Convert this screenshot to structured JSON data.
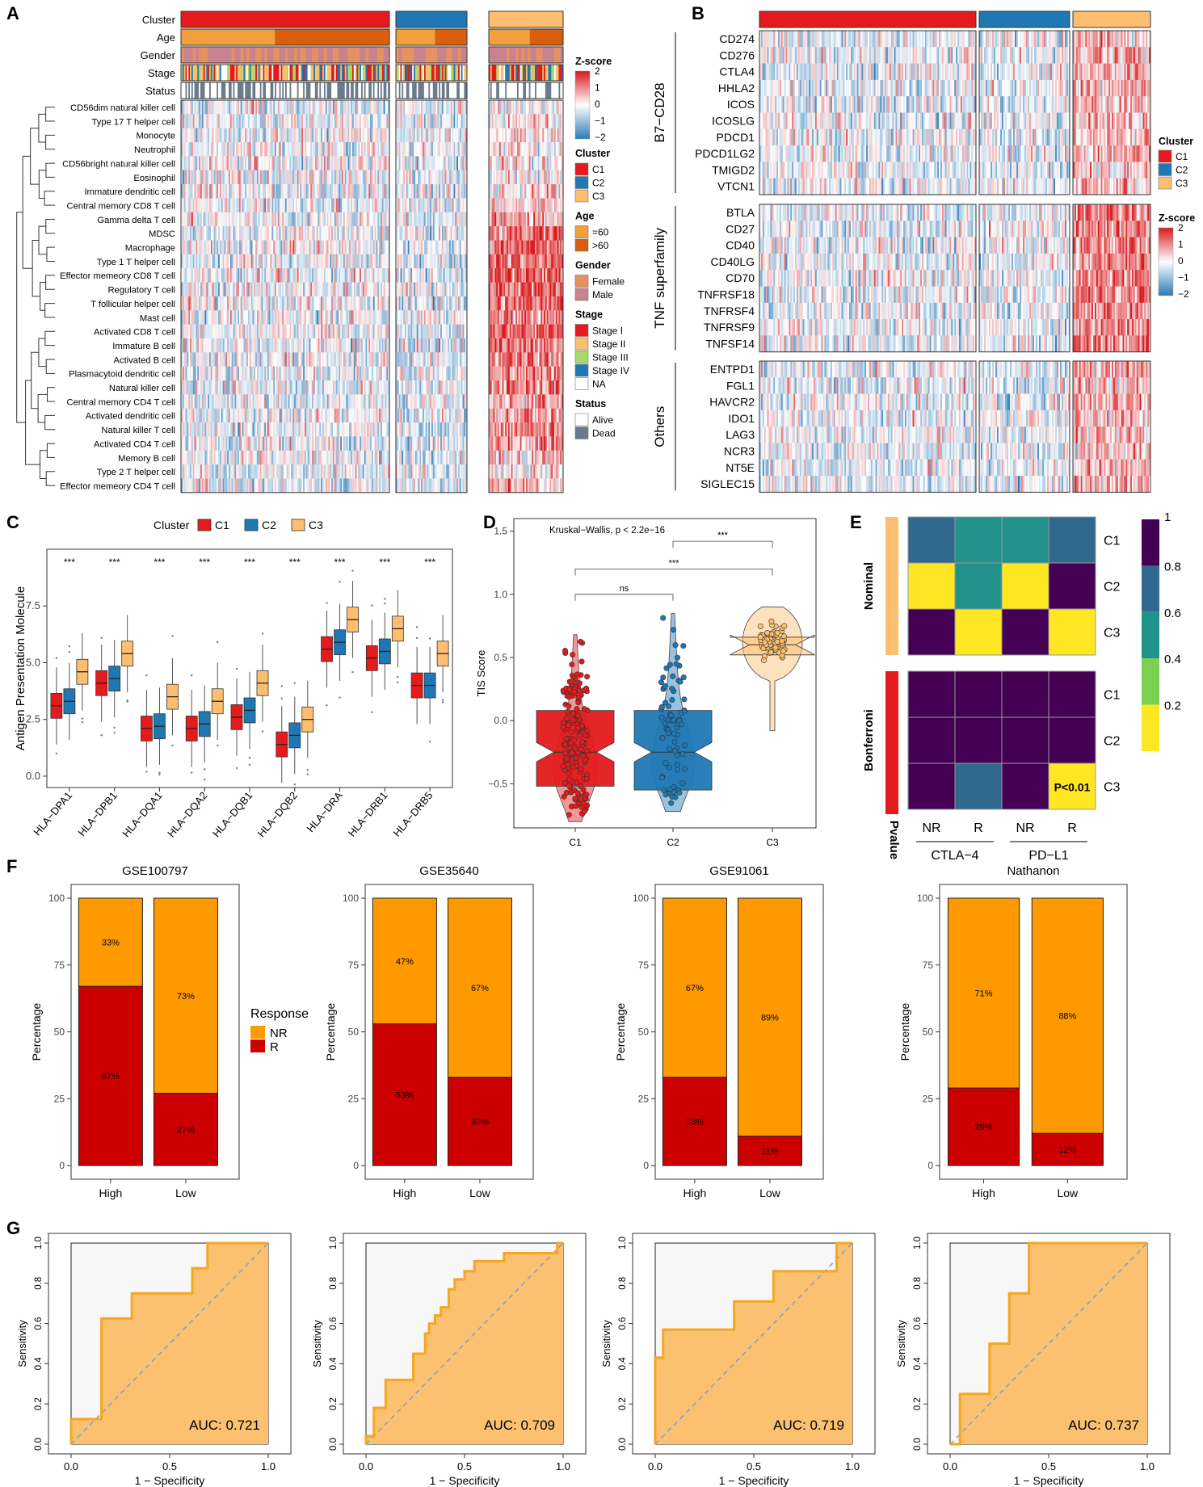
{
  "panel_labels": [
    "A",
    "B",
    "C",
    "D",
    "E",
    "F",
    "G"
  ],
  "colors": {
    "C1": "#e41a1c",
    "C2": "#1f78b4",
    "C3": "#fdbf6f",
    "red": "#d7191c",
    "blue": "#2c7bb6",
    "nr": "#ff9900",
    "r": "#cc0000",
    "roc": "#f5a623"
  },
  "chart_data": [
    {
      "id": "A",
      "type": "heatmap",
      "annotation_tracks": [
        "Cluster",
        "Age",
        "Gender",
        "Stage",
        "Status"
      ],
      "rows": [
        "CD56dim natural killer cell",
        "Type 17 T helper cell",
        "Monocyte",
        "Neutrophil",
        "CD56bright natural killer cell",
        "Eosinophil",
        "Immature dendritic cell",
        "Central memory CD8 T cell",
        "Gamma delta T cell",
        "MDSC",
        "Macrophage",
        "Type 1 T helper cell",
        "Effector memeory CD8 T cell",
        "Regulatory T cell",
        "T follicular helper cell",
        "Mast cell",
        "Activated CD8 T cell",
        "Immature  B cell",
        "Activated B cell",
        "Plasmacytoid dendritic cell",
        "Natural killer cell",
        "Central memory CD4 T cell",
        "Activated dendritic cell",
        "Natural killer T cell",
        "Activated CD4 T cell",
        "Memory B cell",
        "Type 2 T helper cell",
        "Effector memeory CD4 T cell"
      ],
      "row_mean_C3": [
        0.1,
        0.2,
        0.3,
        0.1,
        0.2,
        0.1,
        0.3,
        0.4,
        0.6,
        1.2,
        1.2,
        1.3,
        1.4,
        1.3,
        1.3,
        0.9,
        1.4,
        1.2,
        1.1,
        1.0,
        1.0,
        0.7,
        0.9,
        0.9,
        0.9,
        0.6,
        0.3,
        0.5
      ],
      "legend": {
        "zscore_title": "Z-score",
        "zscore_ticks": [
          "2",
          "1",
          "0",
          "−1",
          "−2"
        ],
        "groups": [
          {
            "title": "Cluster",
            "items": [
              "C1",
              "C2",
              "C3"
            ],
            "colors": [
              "#e41a1c",
              "#1f78b4",
              "#fdbf6f"
            ]
          },
          {
            "title": "Age",
            "items": [
              "=60",
              ">60"
            ],
            "colors": [
              "#f0a03c",
              "#d95f0e"
            ]
          },
          {
            "title": "Gender",
            "items": [
              "Female",
              "Male"
            ],
            "colors": [
              "#e6915f",
              "#c9838f"
            ]
          },
          {
            "title": "Stage",
            "items": [
              "Stage I",
              "Stage II",
              "Stage III",
              "Stage IV",
              "NA"
            ],
            "colors": [
              "#e41a1c",
              "#f5c26b",
              "#a6d96a",
              "#1f78b4",
              "#ffffff"
            ]
          },
          {
            "title": "Status",
            "items": [
              "Alive",
              "Dead"
            ],
            "colors": [
              "#ffffff",
              "#6b7b8c"
            ]
          }
        ]
      }
    },
    {
      "id": "B",
      "type": "heatmap",
      "groups": [
        {
          "name": "B7−CD28",
          "rows": [
            "CD274",
            "CD276",
            "CTLA4",
            "HHLA2",
            "ICOS",
            "ICOSLG",
            "PDCD1",
            "PDCD1LG2",
            "TMIGD2",
            "VTCN1"
          ]
        },
        {
          "name": "TNF superfamily",
          "rows": [
            "BTLA",
            "CD27",
            "CD40",
            "CD40LG",
            "CD70",
            "TNFRSF18",
            "TNFRSF4",
            "TNFRSF9",
            "TNFSF14"
          ]
        },
        {
          "name": "Others",
          "rows": [
            "ENTPD1",
            "FGL1",
            "HAVCR2",
            "IDO1",
            "LAG3",
            "NCR3",
            "NT5E",
            "SIGLEC15"
          ]
        }
      ],
      "legend": {
        "cluster_title": "Cluster",
        "items": [
          "C1",
          "C2",
          "C3"
        ],
        "zscore_title": "Z-score",
        "zscore_ticks": [
          "2",
          "1",
          "0",
          "−1",
          "−2"
        ]
      }
    },
    {
      "id": "C",
      "type": "box",
      "ylabel": "Antigen Presentation Molecule",
      "legend_title": "Cluster",
      "series_names": [
        "C1",
        "C2",
        "C3"
      ],
      "categories": [
        "HLA−DPA1",
        "HLA−DPB1",
        "HLA−DQA1",
        "HLA−DQA2",
        "HLA−DQB1",
        "HLA−DQB2",
        "HLA−DRA",
        "HLA−DRB1",
        "HLA−DRB5"
      ],
      "significance": "***",
      "yticks": [
        "0.0",
        "2.5",
        "5.0",
        "7.5"
      ],
      "ylim": [
        -0.5,
        10
      ],
      "medians": [
        [
          3.1,
          3.3,
          4.6
        ],
        [
          4.1,
          4.3,
          5.4
        ],
        [
          2.1,
          2.2,
          3.5
        ],
        [
          2.1,
          2.3,
          3.3
        ],
        [
          2.6,
          2.9,
          4.1
        ],
        [
          1.4,
          1.8,
          2.5
        ],
        [
          5.6,
          5.9,
          6.9
        ],
        [
          5.2,
          5.5,
          6.5
        ],
        [
          4.0,
          4.0,
          5.4
        ]
      ]
    },
    {
      "id": "D",
      "type": "violin",
      "ylabel": "TIS Score",
      "categories": [
        "C1",
        "C2",
        "C3"
      ],
      "annotation": "Kruskal−Wallis, p < 2.2e−16",
      "comparisons": [
        {
          "pair": [
            "C1",
            "C2"
          ],
          "label": "ns"
        },
        {
          "pair": [
            "C1",
            "C3"
          ],
          "label": "***"
        },
        {
          "pair": [
            "C2",
            "C3"
          ],
          "label": "***"
        }
      ],
      "yticks": [
        "−0.5",
        "0.0",
        "0.5",
        "1.0",
        "1.5"
      ],
      "ylim": [
        -0.85,
        1.6
      ],
      "medians": [
        -0.25,
        -0.25,
        0.6
      ],
      "q1": [
        -0.52,
        -0.55,
        0.52
      ],
      "q3": [
        0.08,
        0.08,
        0.66
      ]
    },
    {
      "id": "E",
      "type": "heatmap",
      "row_groups": [
        "Nominal",
        "Bonferroni"
      ],
      "rows": [
        "C1",
        "C2",
        "C3"
      ],
      "corner_label": "Pvalue",
      "columns": [
        "NR",
        "R",
        "NR",
        "R"
      ],
      "column_groups": [
        "CTLA−4",
        "PD−L1"
      ],
      "values": {
        "Nominal": [
          [
            0.65,
            0.45,
            0.45,
            0.65
          ],
          [
            0.05,
            0.45,
            0.05,
            0.95
          ],
          [
            0.95,
            0.05,
            0.95,
            0.05
          ]
        ],
        "Bonferroni": [
          [
            0.95,
            0.95,
            0.95,
            0.95
          ],
          [
            0.95,
            0.95,
            0.95,
            0.95
          ],
          [
            0.95,
            0.65,
            0.95,
            0.05
          ]
        ]
      },
      "highlight": "P<0.01",
      "colorbar_ticks": [
        "1",
        "0.8",
        "0.6",
        "0.4",
        "0.2"
      ]
    },
    {
      "id": "F",
      "type": "bar",
      "stacked": true,
      "legend_title": "Response",
      "legend_items": [
        "NR",
        "R"
      ],
      "ylabel": "Percentage",
      "yticks": [
        "0",
        "25",
        "50",
        "75",
        "100"
      ],
      "panels": [
        {
          "title": "GSE100797",
          "categories": [
            "High",
            "Low"
          ],
          "NR": [
            33,
            73
          ],
          "R": [
            67,
            27
          ],
          "nr_labels": [
            "33%",
            "73%"
          ],
          "r_labels": [
            "67%",
            "27%"
          ]
        },
        {
          "title": "GSE35640",
          "categories": [
            "High",
            "Low"
          ],
          "NR": [
            47,
            67
          ],
          "R": [
            53,
            33
          ],
          "nr_labels": [
            "47%",
            "67%"
          ],
          "r_labels": [
            "53%",
            "33%"
          ]
        },
        {
          "title": "GSE91061",
          "categories": [
            "High",
            "Low"
          ],
          "NR": [
            67,
            89
          ],
          "R": [
            33,
            11
          ],
          "nr_labels": [
            "67%",
            "89%"
          ],
          "r_labels": [
            "33%",
            "11%"
          ]
        },
        {
          "title": "Nathanon",
          "categories": [
            "High",
            "Low"
          ],
          "NR": [
            71,
            88
          ],
          "R": [
            29,
            12
          ],
          "nr_labels": [
            "71%",
            "88%"
          ],
          "r_labels": [
            "29%",
            "12%"
          ]
        }
      ]
    },
    {
      "id": "G",
      "type": "line",
      "xlabel": "1 − Specificity",
      "ylabel": "Sensitivity",
      "xticks": [
        "0.0",
        "0.5",
        "1.0"
      ],
      "yticks": [
        "0.0",
        "0.2",
        "0.4",
        "0.6",
        "0.8",
        "1.0"
      ],
      "panels": [
        {
          "auc": "AUC: 0.721",
          "points": [
            [
              0,
              0
            ],
            [
              0,
              0.125
            ],
            [
              0.154,
              0.125
            ],
            [
              0.154,
              0.625
            ],
            [
              0.308,
              0.625
            ],
            [
              0.308,
              0.75
            ],
            [
              0.615,
              0.75
            ],
            [
              0.615,
              0.875
            ],
            [
              0.692,
              0.875
            ],
            [
              0.692,
              1
            ],
            [
              1,
              1
            ]
          ]
        },
        {
          "auc": "AUC: 0.709",
          "points": [
            [
              0,
              0
            ],
            [
              0,
              0.04
            ],
            [
              0.04,
              0.04
            ],
            [
              0.04,
              0.18
            ],
            [
              0.1,
              0.18
            ],
            [
              0.1,
              0.32
            ],
            [
              0.24,
              0.32
            ],
            [
              0.24,
              0.45
            ],
            [
              0.3,
              0.45
            ],
            [
              0.3,
              0.55
            ],
            [
              0.32,
              0.55
            ],
            [
              0.32,
              0.6
            ],
            [
              0.35,
              0.6
            ],
            [
              0.35,
              0.64
            ],
            [
              0.38,
              0.64
            ],
            [
              0.38,
              0.68
            ],
            [
              0.42,
              0.68
            ],
            [
              0.42,
              0.77
            ],
            [
              0.45,
              0.77
            ],
            [
              0.45,
              0.82
            ],
            [
              0.5,
              0.82
            ],
            [
              0.5,
              0.86
            ],
            [
              0.55,
              0.86
            ],
            [
              0.55,
              0.91
            ],
            [
              0.7,
              0.91
            ],
            [
              0.7,
              0.95
            ],
            [
              0.97,
              0.95
            ],
            [
              0.97,
              1
            ],
            [
              1,
              1
            ]
          ]
        },
        {
          "auc": "AUC: 0.719",
          "points": [
            [
              0,
              0
            ],
            [
              0,
              0.43
            ],
            [
              0.04,
              0.43
            ],
            [
              0.04,
              0.57
            ],
            [
              0.4,
              0.57
            ],
            [
              0.4,
              0.71
            ],
            [
              0.6,
              0.71
            ],
            [
              0.6,
              0.86
            ],
            [
              0.92,
              0.86
            ],
            [
              0.92,
              1
            ],
            [
              1,
              1
            ]
          ]
        },
        {
          "auc": "AUC: 0.737",
          "points": [
            [
              0,
              0
            ],
            [
              0.05,
              0
            ],
            [
              0.05,
              0.25
            ],
            [
              0.2,
              0.25
            ],
            [
              0.2,
              0.5
            ],
            [
              0.3,
              0.5
            ],
            [
              0.3,
              0.75
            ],
            [
              0.4,
              0.75
            ],
            [
              0.4,
              1
            ],
            [
              1,
              1
            ]
          ]
        }
      ]
    }
  ]
}
